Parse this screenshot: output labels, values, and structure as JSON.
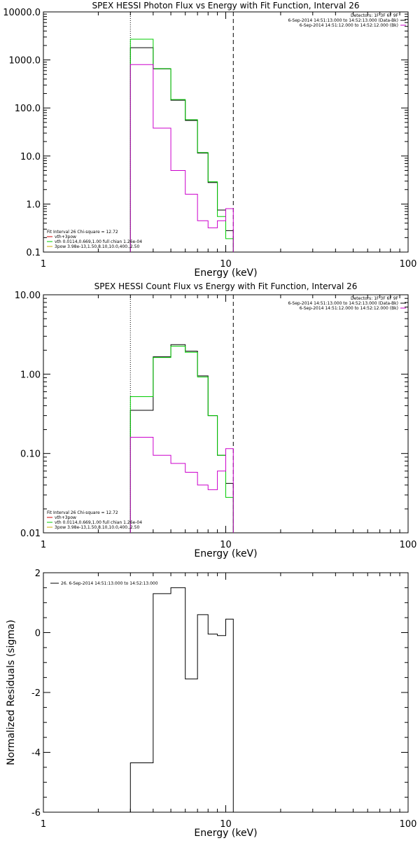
{
  "chart_data": [
    {
      "type": "line",
      "title": "SPEX HESSI Photon Flux vs Energy with Fit Function, Interval 26",
      "xlabel": "Energy (keV)",
      "ylabel": "",
      "xscale": "log",
      "yscale": "log",
      "xlim": [
        1,
        100
      ],
      "ylim": [
        0.1,
        10000
      ],
      "x_ticks": [
        1,
        10,
        100
      ],
      "x_tick_labels": [
        "1",
        "10",
        "100"
      ],
      "y_ticks": [
        0.1,
        1,
        10,
        100,
        1000,
        10000
      ],
      "y_tick_labels": [
        "0.1",
        "1.0",
        "10.0",
        "100.0",
        "1000.0",
        "10000.0"
      ],
      "vlines": [
        {
          "x": 3.0,
          "style": "dotted"
        },
        {
          "x": 11.0,
          "style": "dashed"
        }
      ],
      "legend_top_right": [
        "Detectors: 1F 3F 6F 9F",
        "6-Sep-2014 14:51:13.000 to 14:52:13.000 (Data-Bk)",
        "6-Sep-2014 14:51:12.000 to 14:52:12.000 (Bk)"
      ],
      "legend_top_right_colors": [
        "",
        "#000000",
        "#cc00cc"
      ],
      "legend_bottom_left": [
        "Fit Interval 26   Chi-square = 12.72",
        "vth+3pow",
        "vth 0.0114,0.669,1.00  full chian 1.26e-04",
        "3pow 3.98e-13,1.50,8.10,10.0,400.,2.50"
      ],
      "legend_bottom_left_colors": [
        "",
        "#cc0000",
        "#00cc00",
        "#ccaa00"
      ],
      "bin_edges": [
        3,
        4,
        5,
        6,
        7,
        8,
        9,
        10,
        11
      ],
      "series": [
        {
          "color": "#000000",
          "values": [
            1800,
            650,
            145,
            55,
            11.5,
            2.8,
            0.75,
            0.28
          ]
        },
        {
          "color": "#00cc00",
          "values": [
            2700,
            660,
            150,
            57,
            11.8,
            2.9,
            0.55,
            0.19
          ]
        },
        {
          "color": "#cc00cc",
          "values": [
            800,
            38,
            5.0,
            1.6,
            0.45,
            0.32,
            0.45,
            0.8
          ]
        }
      ]
    },
    {
      "type": "line",
      "title": "SPEX HESSI Count Flux vs Energy with Fit Function, Interval 26",
      "xlabel": "Energy (keV)",
      "ylabel": "",
      "xscale": "log",
      "yscale": "log",
      "xlim": [
        1,
        100
      ],
      "ylim": [
        0.01,
        10
      ],
      "x_ticks": [
        1,
        10,
        100
      ],
      "x_tick_labels": [
        "1",
        "10",
        "100"
      ],
      "y_ticks": [
        0.01,
        0.1,
        1,
        10
      ],
      "y_tick_labels": [
        "0.01",
        "0.10",
        "1.00",
        "10.00"
      ],
      "vlines": [
        {
          "x": 3.0,
          "style": "dotted"
        },
        {
          "x": 11.0,
          "style": "dashed"
        }
      ],
      "legend_top_right": [
        "Detectors: 1F 3F 6F 9F",
        "6-Sep-2014 14:51:13.000 to 14:52:13.000 (Data-Bk)",
        "6-Sep-2014 14:51:12.000 to 14:52:12.000 (Bk)"
      ],
      "legend_top_right_colors": [
        "",
        "#000000",
        "#cc00cc"
      ],
      "legend_bottom_left": [
        "Fit Interval 26   Chi-square = 12.72",
        "vth+3pow",
        "vth 0.0114,0.669,1.00  full chian 1.26e-04",
        "3pow 3.98e-13,1.50,8.10,10.0,400.,2.50"
      ],
      "legend_bottom_left_colors": [
        "",
        "#cc0000",
        "#00cc00",
        "#ccaa00"
      ],
      "bin_edges": [
        3,
        4,
        5,
        6,
        7,
        8,
        9,
        10,
        11
      ],
      "series": [
        {
          "color": "#000000",
          "values": [
            0.35,
            1.65,
            2.35,
            1.95,
            0.95,
            0.3,
            0.095,
            0.042
          ]
        },
        {
          "color": "#00cc00",
          "values": [
            0.52,
            1.62,
            2.25,
            1.88,
            0.92,
            0.3,
            0.095,
            0.028
          ]
        },
        {
          "color": "#cc00cc",
          "values": [
            0.16,
            0.095,
            0.075,
            0.058,
            0.04,
            0.035,
            0.06,
            0.115
          ]
        }
      ]
    },
    {
      "type": "line",
      "title": "",
      "xlabel": "Energy (keV)",
      "ylabel": "Normalized Residuals (sigma)",
      "xscale": "log",
      "yscale": "linear",
      "xlim": [
        1,
        100
      ],
      "ylim": [
        -6,
        2
      ],
      "x_ticks": [
        1,
        10,
        100
      ],
      "x_tick_labels": [
        "1",
        "10",
        "100"
      ],
      "y_ticks": [
        -6,
        -4,
        -2,
        0,
        2
      ],
      "y_tick_labels": [
        "-6",
        "-4",
        "-2",
        "0",
        "2"
      ],
      "vlines": [],
      "legend_top_left": [
        "26. 6-Sep-2014 14:51:13.000 to 14:52:13.000"
      ],
      "legend_top_left_colors": [
        "#000000"
      ],
      "bin_edges": [
        3,
        4,
        5,
        6,
        7,
        8,
        9,
        10,
        11
      ],
      "series": [
        {
          "color": "#000000",
          "values": [
            -4.35,
            1.3,
            1.5,
            -1.55,
            0.6,
            -0.05,
            -0.1,
            0.45
          ]
        }
      ]
    }
  ]
}
